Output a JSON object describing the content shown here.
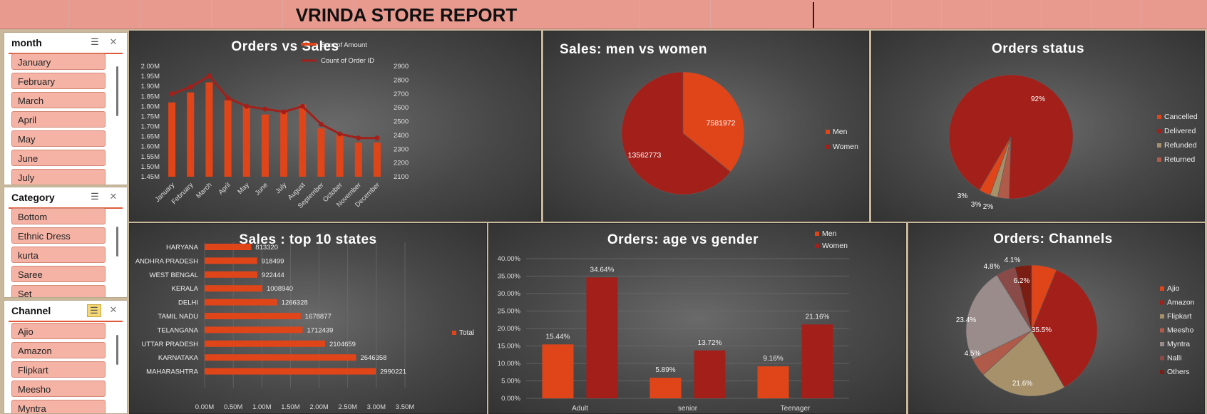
{
  "report_title": "VRINDA STORE REPORT",
  "colors": {
    "accent": "#e0451a",
    "dark": "#a3201a",
    "title_bar": "#e99a8f",
    "slicer_item": "#f4b3a5"
  },
  "slicers": {
    "month": {
      "title": "month",
      "items": [
        "January",
        "February",
        "March",
        "April",
        "May",
        "June",
        "July"
      ]
    },
    "category": {
      "title": "Category",
      "items": [
        "Bottom",
        "Ethnic Dress",
        "kurta",
        "Saree",
        "Set"
      ]
    },
    "channel": {
      "title": "Channel",
      "items": [
        "Ajio",
        "Amazon",
        "Flipkart",
        "Meesho",
        "Myntra"
      ]
    }
  },
  "chart_data": [
    {
      "id": "orders_vs_sales",
      "type": "bar",
      "title": "Orders vs Sales",
      "categories": [
        "January",
        "February",
        "March",
        "April",
        "May",
        "June",
        "July",
        "August",
        "September",
        "October",
        "November",
        "December"
      ],
      "series": [
        {
          "name": "Sum of Amount",
          "kind": "bar",
          "axis": "left",
          "values": [
            1.82,
            1.87,
            1.92,
            1.83,
            1.8,
            1.76,
            1.78,
            1.81,
            1.69,
            1.66,
            1.62,
            1.62
          ]
        },
        {
          "name": "Count of Order ID",
          "kind": "line",
          "axis": "right",
          "values": [
            2700,
            2750,
            2830,
            2670,
            2610,
            2590,
            2570,
            2610,
            2480,
            2410,
            2380,
            2380
          ]
        }
      ],
      "y_left": {
        "ticks": [
          "2.00M",
          "1.95M",
          "1.90M",
          "1.85M",
          "1.80M",
          "1.75M",
          "1.70M",
          "1.65M",
          "1.60M",
          "1.55M",
          "1.50M",
          "1.45M"
        ],
        "ylim": [
          1.45,
          2.0
        ]
      },
      "y_right": {
        "ticks": [
          "2900",
          "2800",
          "2700",
          "2600",
          "2500",
          "2400",
          "2300",
          "2200",
          "2100"
        ],
        "ylim": [
          2100,
          2900
        ]
      },
      "legend": "top-right"
    },
    {
      "id": "sales_men_women",
      "type": "pie",
      "title": "Sales: men vs women",
      "labels": [
        "Men",
        "Women"
      ],
      "values": [
        7581972,
        13562773
      ],
      "data_labels": [
        "7581972",
        "13562773"
      ],
      "legend": "right"
    },
    {
      "id": "orders_status",
      "type": "pie",
      "title": "Orders status",
      "labels": [
        "Cancelled",
        "Delivered",
        "Refunded",
        "Returned"
      ],
      "values": [
        3,
        92,
        2,
        3
      ],
      "data_labels": [
        "3%",
        "92%",
        "2%",
        "3%"
      ],
      "legend": "right"
    },
    {
      "id": "top10_states",
      "type": "bar",
      "orientation": "horizontal",
      "title": "Sales : top 10 states",
      "categories": [
        "HARYANA",
        "ANDHRA PRADESH",
        "WEST BENGAL",
        "KERALA",
        "DELHI",
        "TAMIL NADU",
        "TELANGANA",
        "UTTAR PRADESH",
        "KARNATAKA",
        "MAHARASHTRA"
      ],
      "series": [
        {
          "name": "Total",
          "values": [
            813320,
            918499,
            922444,
            1008940,
            1266328,
            1678877,
            1712439,
            2104659,
            2646358,
            2990221
          ]
        }
      ],
      "data_labels": [
        "813320",
        "918499",
        "922444",
        "1008940",
        "1266328",
        "1678877",
        "1712439",
        "2104659",
        "2646358",
        "2990221"
      ],
      "x_ticks": [
        "0.00M",
        "0.50M",
        "1.00M",
        "1.50M",
        "2.00M",
        "2.50M",
        "3.00M",
        "3.50M"
      ],
      "xlim": [
        0,
        3500000
      ],
      "legend": "right"
    },
    {
      "id": "age_vs_gender",
      "type": "bar",
      "title": "Orders: age vs gender",
      "categories": [
        "Adult",
        "senior",
        "Teenager"
      ],
      "series": [
        {
          "name": "Men",
          "values": [
            15.44,
            5.89,
            9.16
          ],
          "labels": [
            "15.44%",
            "5.89%",
            "9.16%"
          ]
        },
        {
          "name": "Women",
          "values": [
            34.64,
            13.72,
            21.16
          ],
          "labels": [
            "34.64%",
            "13.72%",
            "21.16%"
          ]
        }
      ],
      "y_ticks": [
        "40.00%",
        "35.00%",
        "30.00%",
        "25.00%",
        "20.00%",
        "15.00%",
        "10.00%",
        "5.00%",
        "0.00%"
      ],
      "ylim": [
        0,
        40
      ],
      "legend": "top-right"
    },
    {
      "id": "channels",
      "type": "pie",
      "title": "Orders: Channels",
      "labels": [
        "Ajio",
        "Amazon",
        "Flipkart",
        "Meesho",
        "Myntra",
        "Nalli",
        "Others"
      ],
      "values": [
        6.2,
        35.5,
        21.6,
        4.5,
        23.4,
        4.8,
        4.1
      ],
      "data_labels": [
        "6.2%",
        "35.5%",
        "21.6%",
        "4.5%",
        "23.4%",
        "4.8%",
        "4.1%"
      ],
      "legend": "right"
    }
  ]
}
